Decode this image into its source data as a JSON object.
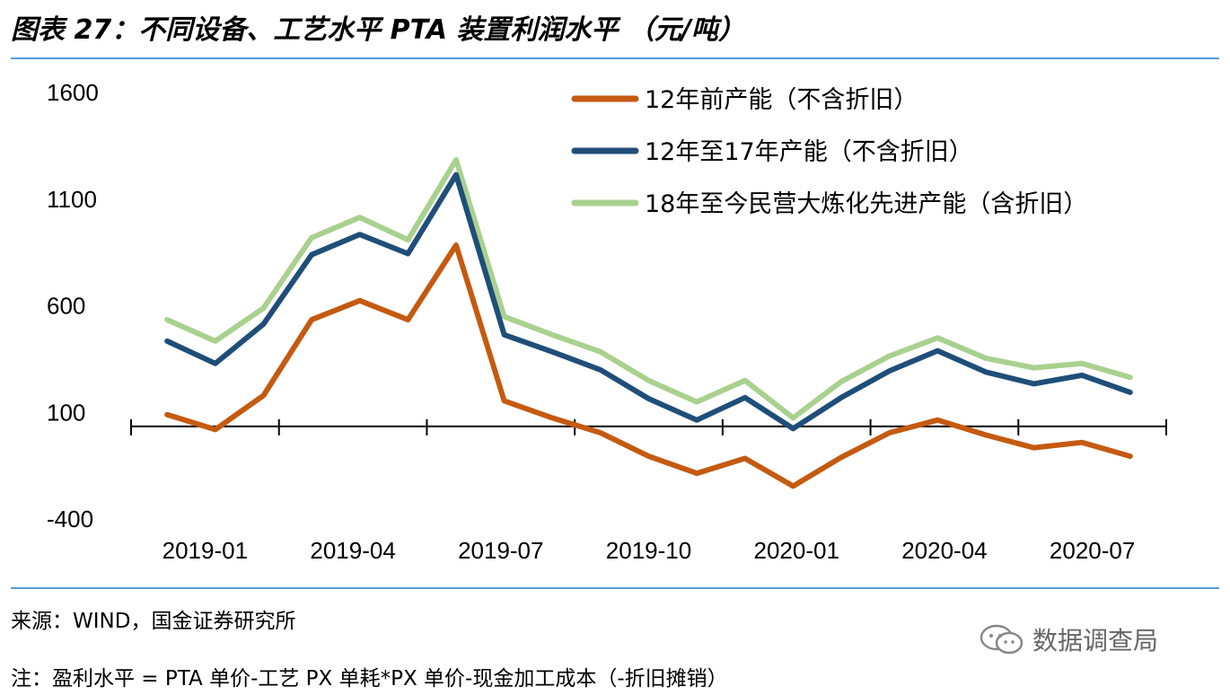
{
  "header": {
    "title": "图表 27：不同设备、工艺水平 PTA 装置利润水平 （元/吨）"
  },
  "footer": {
    "source": "来源：WIND，国金证券研究所",
    "note": "注：盈利水平 = PTA 单价-工艺 PX 单耗*PX 单价-现金加工成本（-折旧摊销）",
    "watermark": "数据调查局"
  },
  "chart_data": {
    "type": "line",
    "x": [
      "2019-01",
      "2019-02",
      "2019-03",
      "2019-04",
      "2019-05",
      "2019-06",
      "2019-07",
      "2019-08",
      "2019-09",
      "2019-10",
      "2019-11",
      "2019-12",
      "2020-01",
      "2020-02",
      "2020-03",
      "2020-04",
      "2020-05",
      "2020-06",
      "2020-07",
      "2020-08",
      "2020-09"
    ],
    "xticks": [
      "2019-01",
      "2019-04",
      "2019-07",
      "2019-10",
      "2020-01",
      "2020-04",
      "2020-07"
    ],
    "yticks": [
      1600,
      1100,
      600,
      100,
      -400
    ],
    "ylim": [
      -400,
      1600
    ],
    "axis_line_at": 30,
    "legend_position": "top-right",
    "series": [
      {
        "name": "12年前产能（不含折旧）",
        "color": "#c55a11",
        "values": [
          85,
          15,
          175,
          530,
          620,
          530,
          880,
          150,
          70,
          0,
          -110,
          -190,
          -120,
          -250,
          -115,
          0,
          60,
          -10,
          -70,
          -45,
          -110
        ]
      },
      {
        "name": "12年至17年产能（不含折旧）",
        "color": "#1f4e79",
        "values": [
          430,
          325,
          510,
          835,
          930,
          840,
          1210,
          460,
          380,
          295,
          160,
          60,
          165,
          20,
          165,
          290,
          385,
          285,
          230,
          270,
          190
        ]
      },
      {
        "name": "18年至今民营大炼化先进产能（含折旧）",
        "color": "#a9d18e",
        "values": [
          530,
          430,
          585,
          915,
          1010,
          905,
          1280,
          545,
          460,
          380,
          245,
          145,
          245,
          70,
          240,
          360,
          445,
          350,
          305,
          325,
          260
        ]
      }
    ]
  }
}
